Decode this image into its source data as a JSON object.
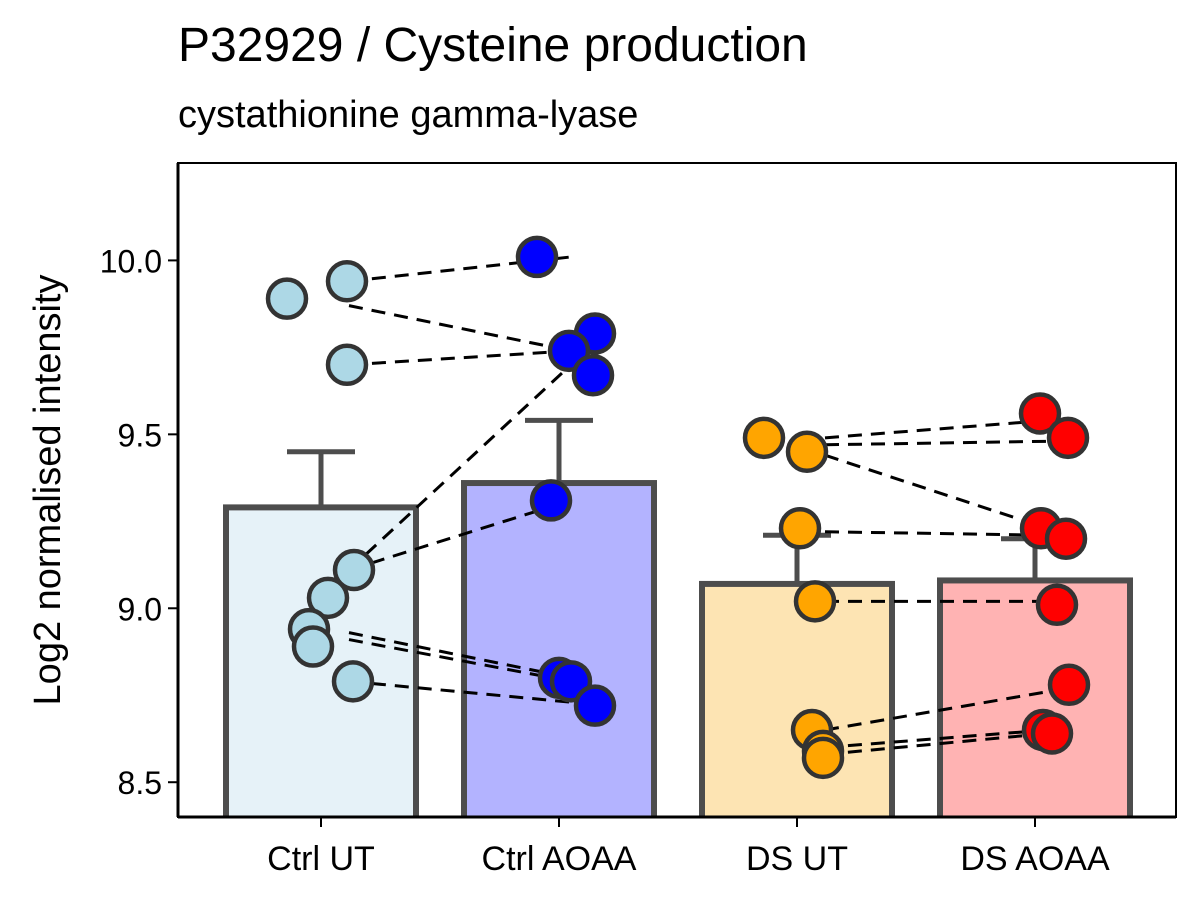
{
  "chart_data": {
    "type": "bar",
    "title": "P32929 / Cysteine production",
    "subtitle": "cystathionine gamma-lyase",
    "xlabel": "",
    "ylabel": "Log2 normalised intensity",
    "ylim": [
      8.4,
      10.28
    ],
    "yticks": [
      8.5,
      9.0,
      9.5,
      10.0
    ],
    "ytick_labels": [
      "8.5",
      "9.0",
      "9.5",
      "10.0"
    ],
    "categories": [
      "Ctrl UT",
      "Ctrl AOAA",
      "DS UT",
      "DS AOAA"
    ],
    "values": [
      9.29,
      9.36,
      9.07,
      9.08
    ],
    "error_upper": [
      9.45,
      9.54,
      9.21,
      9.2
    ],
    "bar_fill_colors": [
      "#e6f2f8",
      "#b3b3ff",
      "#fde4b3",
      "#ffb3b3"
    ],
    "point_colors": [
      "#add8e6",
      "#0000ff",
      "#ffa500",
      "#ff0000"
    ],
    "points": [
      [
        9.89,
        9.94,
        9.7,
        9.11,
        9.03,
        8.94,
        8.89,
        8.79
      ],
      [
        10.01,
        9.79,
        9.74,
        9.67,
        9.31,
        8.8,
        8.79,
        8.72
      ],
      [
        9.49,
        9.45,
        9.23,
        9.02,
        8.65,
        8.59,
        8.57
      ],
      [
        9.56,
        9.49,
        9.23,
        9.2,
        9.01,
        8.78,
        8.65,
        8.64
      ]
    ],
    "pairs": [
      {
        "group_from": "Ctrl UT",
        "y_from": 9.94,
        "group_to": "Ctrl AOAA",
        "y_to": 10.01
      },
      {
        "group_from": "Ctrl UT",
        "y_from": 9.87,
        "group_to": "Ctrl AOAA",
        "y_to": 9.74
      },
      {
        "group_from": "Ctrl UT",
        "y_from": 9.7,
        "group_to": "Ctrl AOAA",
        "y_to": 9.74
      },
      {
        "group_from": "Ctrl UT",
        "y_from": 9.11,
        "group_to": "Ctrl AOAA",
        "y_to": 9.7
      },
      {
        "group_from": "Ctrl UT",
        "y_from": 9.11,
        "group_to": "Ctrl AOAA",
        "y_to": 9.31
      },
      {
        "group_from": "Ctrl UT",
        "y_from": 8.93,
        "group_to": "Ctrl AOAA",
        "y_to": 8.8
      },
      {
        "group_from": "Ctrl UT",
        "y_from": 8.91,
        "group_to": "Ctrl AOAA",
        "y_to": 8.79
      },
      {
        "group_from": "Ctrl UT",
        "y_from": 8.79,
        "group_to": "Ctrl AOAA",
        "y_to": 8.73
      },
      {
        "group_from": "DS UT",
        "y_from": 9.49,
        "group_to": "DS AOAA",
        "y_to": 9.54
      },
      {
        "group_from": "DS UT",
        "y_from": 9.47,
        "group_to": "DS AOAA",
        "y_to": 9.48
      },
      {
        "group_from": "DS UT",
        "y_from": 9.44,
        "group_to": "DS AOAA",
        "y_to": 9.23
      },
      {
        "group_from": "DS UT",
        "y_from": 9.22,
        "group_to": "DS AOAA",
        "y_to": 9.21
      },
      {
        "group_from": "DS UT",
        "y_from": 9.02,
        "group_to": "DS AOAA",
        "y_to": 9.02
      },
      {
        "group_from": "DS UT",
        "y_from": 8.65,
        "group_to": "DS AOAA",
        "y_to": 8.76
      },
      {
        "group_from": "DS UT",
        "y_from": 8.6,
        "group_to": "DS AOAA",
        "y_to": 8.65
      },
      {
        "group_from": "DS UT",
        "y_from": 8.58,
        "group_to": "DS AOAA",
        "y_to": 8.64
      }
    ],
    "grid": false,
    "legend": "none"
  }
}
